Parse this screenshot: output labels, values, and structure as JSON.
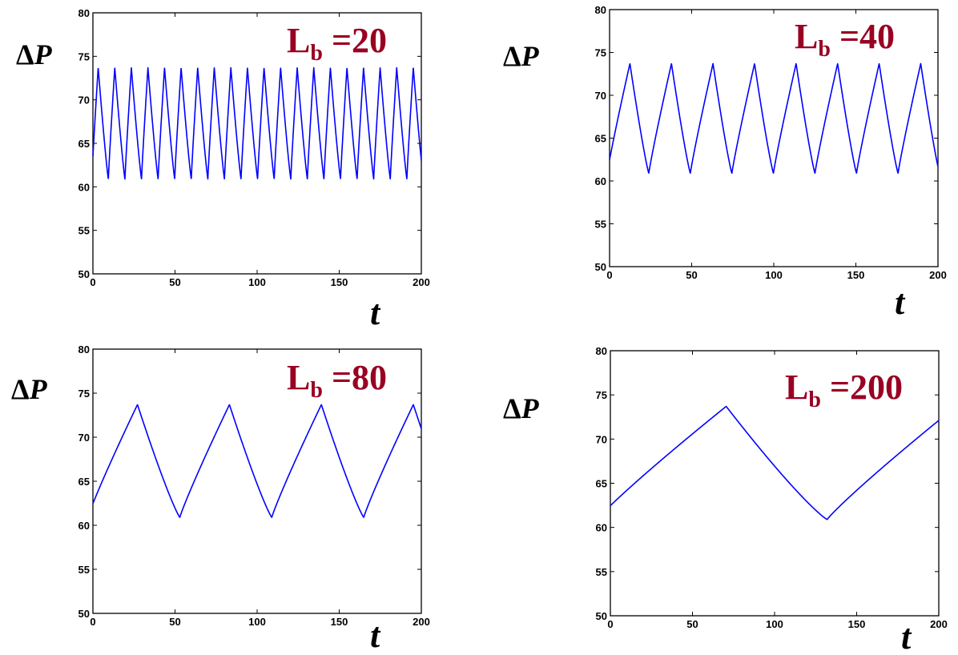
{
  "colors": {
    "series": "#0000ff",
    "annotation": "#990022",
    "axes": "#000000"
  },
  "chart_data": [
    {
      "type": "line",
      "ylabel_delta": "Δ",
      "ylabel_var": "P",
      "xlabel": "t",
      "annotation": {
        "main": "L",
        "sub": "b",
        "value": " =20"
      },
      "xlim": [
        0,
        200
      ],
      "ylim": [
        50,
        80
      ],
      "xticks": [
        "0",
        "50",
        "100",
        "150",
        "200"
      ],
      "yticks": [
        "50",
        "55",
        "60",
        "65",
        "70",
        "75",
        "80"
      ],
      "grid": false,
      "series": [
        {
          "period": 10.1,
          "rise": 3.9,
          "start_phase": 0.3,
          "min": 60.9,
          "max": 73.7,
          "start_value": 62.2
        }
      ]
    },
    {
      "type": "line",
      "ylabel_delta": "Δ",
      "ylabel_var": "P",
      "xlabel": "t",
      "annotation": {
        "main": "L",
        "sub": "b",
        "value": " =40"
      },
      "xlim": [
        0,
        200
      ],
      "ylim": [
        50,
        80
      ],
      "xticks": [
        "0",
        "50",
        "100",
        "150",
        "200"
      ],
      "yticks": [
        "50",
        "55",
        "60",
        "65",
        "70",
        "75",
        "80"
      ],
      "grid": false,
      "series": [
        {
          "period": 25.3,
          "rise": 13.8,
          "start_phase": 0.0,
          "min": 60.9,
          "max": 73.7,
          "start_value": 62.2
        }
      ]
    },
    {
      "type": "line",
      "ylabel_delta": "Δ",
      "ylabel_var": "P",
      "xlabel": "t",
      "annotation": {
        "main": "L",
        "sub": "b",
        "value": " =80"
      },
      "xlim": [
        0,
        200
      ],
      "ylim": [
        50,
        80
      ],
      "xticks": [
        "0",
        "50",
        "100",
        "150",
        "200"
      ],
      "yticks": [
        "50",
        "55",
        "60",
        "65",
        "70",
        "75",
        "80"
      ],
      "grid": false,
      "series": [
        {
          "period": 56.0,
          "rise": 30.2,
          "start_phase": 0.0,
          "min": 60.9,
          "max": 73.7,
          "start_value": 62.2
        }
      ]
    },
    {
      "type": "line",
      "ylabel_delta": "Δ",
      "ylabel_var": "P",
      "xlabel": "t",
      "annotation": {
        "main": "L",
        "sub": "b",
        "value": " =200"
      },
      "xlim": [
        0,
        200
      ],
      "ylim": [
        50,
        80
      ],
      "xticks": [
        "0",
        "50",
        "100",
        "150",
        "200"
      ],
      "yticks": [
        "50",
        "55",
        "60",
        "65",
        "70",
        "75",
        "80"
      ],
      "grid": false,
      "series": [
        {
          "period": 140.0,
          "rise": 78.5,
          "start_phase": 0.0,
          "min": 60.9,
          "max": 73.7,
          "start_value": 62.2
        }
      ]
    }
  ]
}
